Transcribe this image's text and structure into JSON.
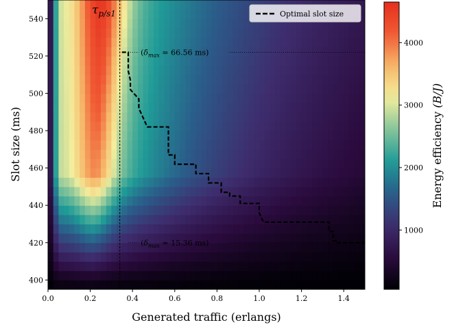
{
  "chart_data": {
    "type": "heatmap",
    "xlabel": "Generated traffic (erlangs)",
    "ylabel": "Slot size (ms)",
    "xlim": [
      0.0,
      1.5
    ],
    "ylim": [
      395,
      550
    ],
    "xticks": [
      0.0,
      0.2,
      0.4,
      0.6,
      0.8,
      1.0,
      1.2,
      1.4
    ],
    "xtick_labels": [
      "0.0",
      "0.2",
      "0.4",
      "0.6",
      "0.8",
      "1.0",
      "1.2",
      "1.4"
    ],
    "yticks": [
      400,
      420,
      440,
      460,
      480,
      500,
      520,
      540
    ],
    "ytick_labels": [
      "400",
      "420",
      "440",
      "460",
      "480",
      "500",
      "520",
      "540"
    ],
    "colorbar": {
      "label": "Energy efficiency (B/J)",
      "label_main": "Energy efficiency ",
      "label_unit": "(B/J)",
      "range": [
        50,
        4650
      ],
      "ticks": [
        1000,
        2000,
        3000,
        4000
      ],
      "tick_labels": [
        "1000",
        "2000",
        "3000",
        "4000"
      ],
      "colormap": "spectral-inverted",
      "stops": [
        "#000004",
        "#2b0b3e",
        "#3e2d6e",
        "#2a5d8a",
        "#1f9b97",
        "#84c49a",
        "#f3ee9d",
        "#f6b86a",
        "#f05a34",
        "#e5301e"
      ]
    },
    "vline": {
      "x": 0.34,
      "label": "τ_{p/s1}",
      "label_main": "τ",
      "label_sub": "p/s1"
    },
    "series": [
      {
        "name": "Optimal slot size",
        "style": "dashed",
        "color": "#000000",
        "x": [
          0.35,
          0.38,
          0.38,
          0.39,
          0.39,
          0.43,
          0.43,
          0.47,
          0.47,
          0.57,
          0.57,
          0.6,
          0.6,
          0.7,
          0.7,
          0.76,
          0.76,
          0.82,
          0.82,
          0.86,
          0.86,
          0.91,
          0.91,
          1.0,
          1.0,
          1.02,
          1.02,
          1.33,
          1.33,
          1.35,
          1.35,
          1.37,
          1.37,
          1.5
        ],
        "y": [
          522,
          522,
          512,
          507,
          502,
          497,
          492,
          482,
          482,
          482,
          467,
          467,
          462,
          462,
          457,
          457,
          452,
          452,
          447,
          447,
          445,
          445,
          441,
          441,
          436,
          431,
          431,
          431,
          426,
          426,
          421,
          421,
          420,
          420
        ]
      }
    ],
    "annotations": [
      {
        "text": "(δmax = 66.56 ms)",
        "symbol": "δ",
        "sub": "max",
        "value": " = 66.56 ms",
        "x": 0.6,
        "y": 522
      },
      {
        "text": "(δmax = 15.36 ms)",
        "symbol": "δ",
        "sub": "max",
        "value": " = 15.36 ms",
        "x": 0.6,
        "y": 420
      }
    ],
    "reference_lines": [
      {
        "y": 522,
        "style": "dotted"
      },
      {
        "y": 420,
        "style": "dotted"
      }
    ],
    "legend": {
      "position": "top-right"
    }
  }
}
